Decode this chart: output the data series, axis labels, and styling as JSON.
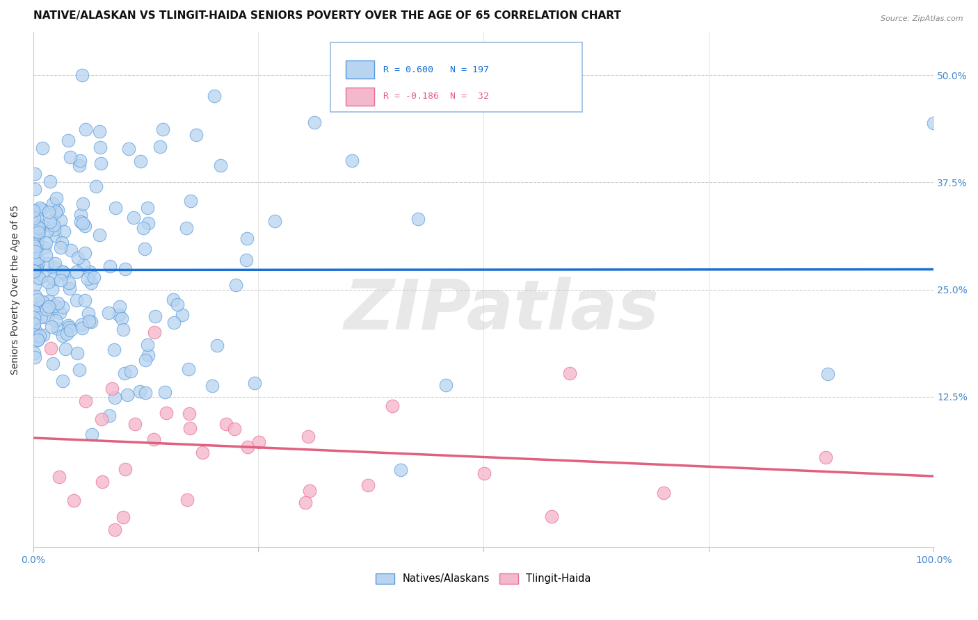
{
  "title": "NATIVE/ALASKAN VS TLINGIT-HAIDA SENIORS POVERTY OVER THE AGE OF 65 CORRELATION CHART",
  "source": "Source: ZipAtlas.com",
  "ylabel": "Seniors Poverty Over the Age of 65",
  "legend_blue_label": "Natives/Alaskans",
  "legend_pink_label": "Tlingit-Haida",
  "legend_blue_R": "R = 0.600",
  "legend_blue_N": "N = 197",
  "legend_pink_R": "R = -0.186",
  "legend_pink_N": "N =  32",
  "blue_fill": "#b8d4f0",
  "blue_edge": "#5599dd",
  "pink_fill": "#f4b8cc",
  "pink_edge": "#e87090",
  "blue_line_color": "#1a6fd4",
  "pink_line_color": "#e06080",
  "legend_text_blue": "#1a6fd4",
  "legend_text_pink": "#e06080",
  "R_blue": 0.6,
  "N_blue": 197,
  "R_pink": -0.186,
  "N_pink": 32,
  "xmin": 0.0,
  "xmax": 1.0,
  "ymin": -0.05,
  "ymax": 0.55,
  "ytick_values": [
    0.125,
    0.25,
    0.375,
    0.5
  ],
  "ytick_labels": [
    "12.5%",
    "25.0%",
    "37.5%",
    "50.0%"
  ],
  "watermark_text": "ZIPatlas",
  "title_fontsize": 11,
  "axis_label_fontsize": 10,
  "tick_fontsize": 10,
  "source_fontsize": 8
}
